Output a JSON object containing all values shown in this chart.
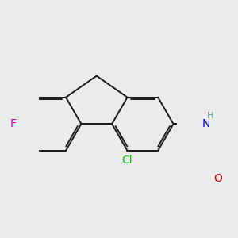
{
  "background_color": "#ebebeb",
  "bond_color": "#1a1a1a",
  "atom_colors": {
    "F": "#cc00cc",
    "Cl": "#00cc00",
    "N": "#0000cc",
    "O": "#cc0000",
    "H_N": "#5599aa",
    "C": "#1a1a1a"
  },
  "bond_width": 1.4,
  "font_size": 9,
  "figsize": [
    3.0,
    3.0
  ],
  "dpi": 100
}
